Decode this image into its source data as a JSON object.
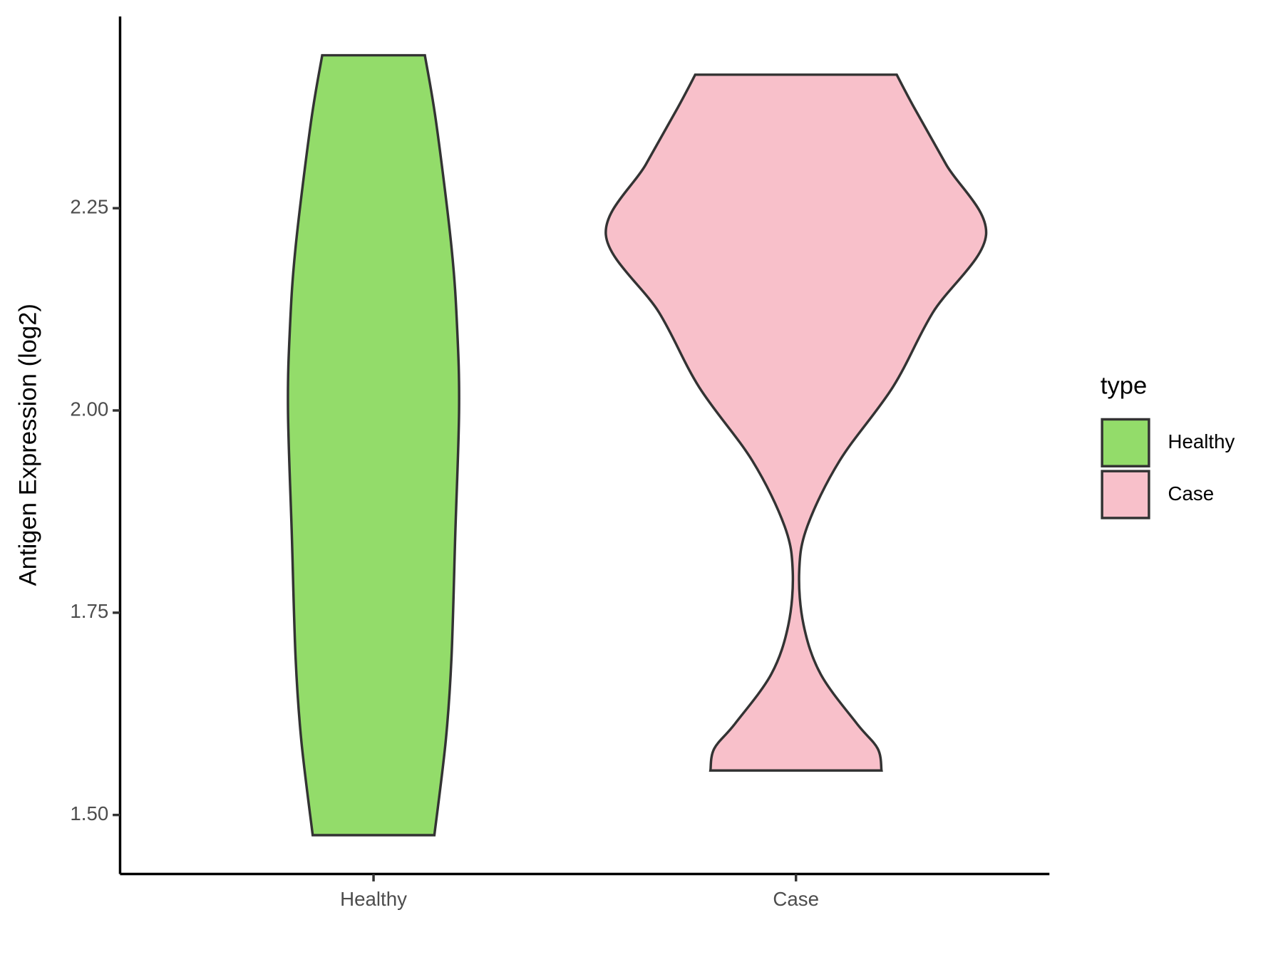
{
  "chart_data": {
    "type": "violin",
    "y_label": "Antigen Expression (log2)",
    "categories": [
      "Healthy",
      "Case"
    ],
    "legend_title": "type",
    "legend_position": "right",
    "series": [
      {
        "name": "Healthy",
        "color": "#93dc6a",
        "y": [
          2.439,
          2.355,
          2.202,
          2.101,
          2.0,
          1.847,
          1.694,
          1.592,
          1.475
        ],
        "width": [
          0.27,
          0.33,
          0.41,
          0.44,
          0.45,
          0.43,
          0.41,
          0.38,
          0.32
        ]
      },
      {
        "name": "Case",
        "color": "#f8c0ca",
        "y": [
          2.415,
          2.375,
          2.304,
          2.217,
          2.121,
          2.029,
          1.938,
          1.857,
          1.801,
          1.735,
          1.674,
          1.613,
          1.582,
          1.555
        ],
        "width": [
          0.53,
          0.62,
          0.79,
          1.0,
          0.72,
          0.51,
          0.23,
          0.06,
          0.017,
          0.04,
          0.13,
          0.32,
          0.43,
          0.45
        ]
      }
    ],
    "ylim": [
      1.427,
      2.487
    ],
    "yticks": [
      {
        "value": 1.5,
        "label": "1.50"
      },
      {
        "value": 1.75,
        "label": "1.75"
      },
      {
        "value": 2.0,
        "label": "2.00"
      },
      {
        "value": 2.25,
        "label": "2.25"
      }
    ],
    "grid": false
  }
}
